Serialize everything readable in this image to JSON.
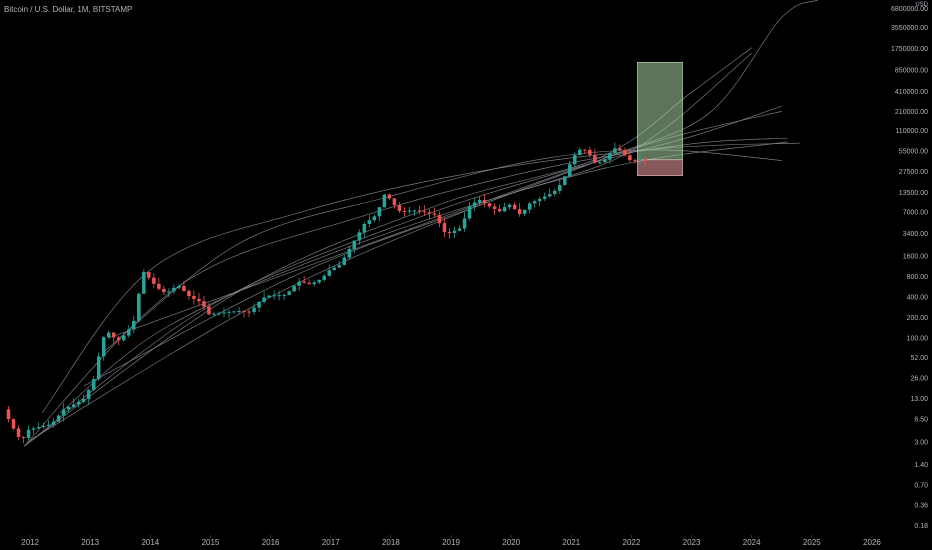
{
  "header": {
    "title": "Bitcoin / U.S. Dollar, 1M, BITSTAMP",
    "currency": "USD"
  },
  "colors": {
    "background": "#000000",
    "up": "#26a69a",
    "down": "#ef5350",
    "arc": "#8a8d94",
    "target_zone": "#a8d5a2",
    "stop_zone": "#f2a0a8"
  },
  "chart_data": {
    "type": "candlestick",
    "title": "Bitcoin / U.S. Dollar, 1M, BITSTAMP",
    "y_scale": "log",
    "ylim": [
      0.13,
      9000000
    ],
    "xlim": [
      2011.5,
      2026.3
    ],
    "x_ticks": [
      "2012",
      "2013",
      "2014",
      "2015",
      "2016",
      "2017",
      "2018",
      "2019",
      "2020",
      "2021",
      "2022",
      "2023",
      "2024",
      "2025",
      "2026"
    ],
    "y_ticks": [
      "6800000.00",
      "3550000.00",
      "1750000.00",
      "850000.00",
      "410000.00",
      "210000.00",
      "110000.00",
      "55000.00",
      "27500.00",
      "13500.00",
      "7000.00",
      "3400.00",
      "1600.00",
      "800.00",
      "400.00",
      "200.00",
      "100.00",
      "52.00",
      "26.00",
      "13.00",
      "6.50",
      "3.00",
      "1.40",
      "0.70",
      "0.36",
      "0.18"
    ],
    "price_path": [
      [
        2011.6,
        9
      ],
      [
        2011.75,
        5
      ],
      [
        2011.9,
        3
      ],
      [
        2012.0,
        4.5
      ],
      [
        2012.2,
        5
      ],
      [
        2012.4,
        5.5
      ],
      [
        2012.6,
        9
      ],
      [
        2012.8,
        11
      ],
      [
        2012.95,
        13
      ],
      [
        2013.1,
        25
      ],
      [
        2013.25,
        100
      ],
      [
        2013.35,
        120
      ],
      [
        2013.5,
        90
      ],
      [
        2013.65,
        120
      ],
      [
        2013.8,
        200
      ],
      [
        2013.9,
        1000
      ],
      [
        2014.0,
        800
      ],
      [
        2014.15,
        550
      ],
      [
        2014.3,
        450
      ],
      [
        2014.5,
        600
      ],
      [
        2014.7,
        400
      ],
      [
        2014.9,
        330
      ],
      [
        2015.0,
        220
      ],
      [
        2015.3,
        240
      ],
      [
        2015.5,
        250
      ],
      [
        2015.7,
        240
      ],
      [
        2015.9,
        380
      ],
      [
        2016.0,
        420
      ],
      [
        2016.3,
        430
      ],
      [
        2016.5,
        680
      ],
      [
        2016.7,
        610
      ],
      [
        2016.9,
        750
      ],
      [
        2017.0,
        970
      ],
      [
        2017.2,
        1200
      ],
      [
        2017.4,
        2400
      ],
      [
        2017.6,
        4700
      ],
      [
        2017.8,
        6400
      ],
      [
        2017.95,
        13800
      ],
      [
        2018.05,
        10000
      ],
      [
        2018.2,
        7000
      ],
      [
        2018.4,
        7500
      ],
      [
        2018.6,
        7000
      ],
      [
        2018.8,
        6300
      ],
      [
        2018.9,
        3700
      ],
      [
        2019.0,
        3400
      ],
      [
        2019.2,
        4100
      ],
      [
        2019.35,
        8500
      ],
      [
        2019.5,
        10800
      ],
      [
        2019.7,
        8300
      ],
      [
        2019.85,
        7200
      ],
      [
        2020.0,
        9300
      ],
      [
        2020.2,
        6400
      ],
      [
        2020.35,
        9400
      ],
      [
        2020.55,
        11300
      ],
      [
        2020.75,
        13800
      ],
      [
        2020.9,
        19700
      ],
      [
        2021.0,
        33000
      ],
      [
        2021.15,
        58000
      ],
      [
        2021.3,
        57000
      ],
      [
        2021.45,
        35000
      ],
      [
        2021.6,
        41000
      ],
      [
        2021.75,
        61000
      ],
      [
        2021.85,
        57000
      ],
      [
        2021.95,
        46000
      ],
      [
        2022.05,
        38000
      ],
      [
        2022.15,
        43000
      ],
      [
        2022.25,
        39000
      ]
    ],
    "arcs": [
      [
        [
          2011.9,
          2.6
        ],
        [
          2014.5,
          600
        ],
        [
          2017.5,
          6000
        ],
        [
          2020.5,
          30000
        ],
        [
          2023.0,
          70000
        ],
        [
          2024.6,
          85000
        ]
      ],
      [
        [
          2012.2,
          8
        ],
        [
          2014.0,
          1000
        ],
        [
          2016.5,
          7000
        ],
        [
          2019.5,
          28000
        ],
        [
          2022.5,
          60000
        ],
        [
          2024.8,
          72000
        ]
      ],
      [
        [
          2013.2,
          60
        ],
        [
          2015.5,
          2500
        ],
        [
          2018.0,
          12000
        ],
        [
          2020.5,
          42000
        ],
        [
          2022.5,
          57000
        ],
        [
          2024.5,
          40000
        ]
      ],
      [
        [
          2011.9,
          2.6
        ],
        [
          2015.0,
          300
        ],
        [
          2018.5,
          6000
        ],
        [
          2021.0,
          30000
        ],
        [
          2023.0,
          90000
        ],
        [
          2024.5,
          250000
        ]
      ],
      [
        [
          2011.9,
          2.6
        ],
        [
          2015.5,
          500
        ],
        [
          2018.8,
          9000
        ],
        [
          2021.5,
          45000
        ],
        [
          2023.0,
          400000
        ],
        [
          2024.0,
          1800000
        ]
      ],
      [
        [
          2012.9,
          20
        ],
        [
          2016.5,
          900
        ],
        [
          2019.5,
          9000
        ],
        [
          2021.6,
          45000
        ],
        [
          2023.3,
          200000
        ],
        [
          2024.5,
          5000000
        ],
        [
          2025.1,
          9000000
        ]
      ],
      [
        [
          2011.95,
          3
        ],
        [
          2016.0,
          400
        ],
        [
          2019.5,
          9000
        ],
        [
          2022.0,
          55000
        ],
        [
          2024.0,
          1500000
        ]
      ],
      [
        [
          2013.3,
          100
        ],
        [
          2017.0,
          1500
        ],
        [
          2020.5,
          20000
        ],
        [
          2022.5,
          80000
        ],
        [
          2024.5,
          210000
        ]
      ],
      [
        [
          2012.5,
          8
        ],
        [
          2014.3,
          150
        ],
        [
          2017.5,
          2500
        ],
        [
          2021.5,
          30000
        ],
        [
          2024.6,
          75000
        ]
      ]
    ],
    "zones": {
      "target": {
        "x": [
          2022.1,
          2022.85
        ],
        "y": [
          41000,
          1100000
        ]
      },
      "stop": {
        "x": [
          2022.1,
          2022.85
        ],
        "y": [
          24000,
          41000
        ]
      }
    }
  }
}
